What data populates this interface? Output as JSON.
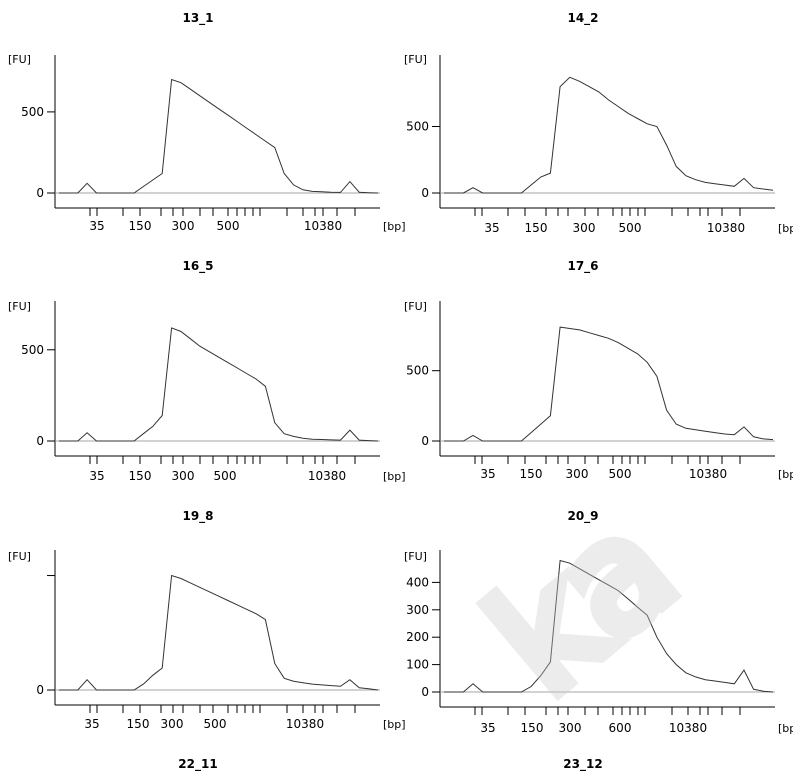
{
  "chart_data": [
    {
      "type": "line",
      "title": "13_1",
      "ylabel": "[FU]",
      "xlabel": "[bp]",
      "yticks": [
        "500",
        "0"
      ],
      "ytick_values": [
        500,
        0
      ],
      "ylim": [
        -80,
        820
      ],
      "xticks": [
        "35",
        "150",
        "300",
        "500",
        "10380"
      ],
      "series": [
        {
          "values": [
            0,
            0,
            0,
            60,
            0,
            0,
            0,
            0,
            0,
            40,
            80,
            120,
            700,
            680,
            640,
            600,
            560,
            520,
            480,
            440,
            400,
            360,
            320,
            280,
            120,
            50,
            20,
            10,
            8,
            5,
            4,
            70,
            5,
            2,
            0
          ]
        }
      ]
    },
    {
      "type": "line",
      "title": "14_2",
      "ylabel": "[FU]",
      "xlabel": "[bp]",
      "yticks": [
        "500",
        "0"
      ],
      "ytick_values": [
        500,
        0
      ],
      "ylim": [
        -80,
        1000
      ],
      "xticks": [
        "35",
        "150",
        "300",
        "500",
        "10380"
      ],
      "series": [
        {
          "values": [
            0,
            0,
            0,
            40,
            0,
            0,
            0,
            0,
            0,
            60,
            120,
            150,
            800,
            870,
            840,
            800,
            760,
            700,
            650,
            600,
            560,
            520,
            500,
            360,
            200,
            130,
            100,
            80,
            70,
            60,
            50,
            110,
            40,
            30,
            20
          ]
        }
      ]
    },
    {
      "type": "line",
      "title": "16_5",
      "ylabel": "[FU]",
      "xlabel": "[bp]",
      "yticks": [
        "500",
        "0"
      ],
      "ytick_values": [
        500,
        0
      ],
      "ylim": [
        -80,
        740
      ],
      "xticks": [
        "35",
        "150",
        "300",
        "500",
        "10380"
      ],
      "series": [
        {
          "values": [
            0,
            0,
            0,
            45,
            0,
            0,
            0,
            0,
            0,
            40,
            80,
            140,
            620,
            600,
            560,
            520,
            490,
            460,
            430,
            400,
            370,
            340,
            300,
            100,
            40,
            25,
            15,
            10,
            8,
            6,
            5,
            60,
            5,
            2,
            0
          ]
        }
      ]
    },
    {
      "type": "line",
      "title": "17_6",
      "ylabel": "[FU]",
      "xlabel": "[bp]",
      "yticks": [
        "500",
        "0"
      ],
      "ytick_values": [
        500,
        0
      ],
      "ylim": [
        -60,
        960
      ],
      "xticks": [
        "35",
        "150",
        "300",
        "500",
        "10380"
      ],
      "series": [
        {
          "values": [
            0,
            0,
            0,
            40,
            0,
            0,
            0,
            0,
            0,
            60,
            120,
            180,
            810,
            800,
            790,
            770,
            750,
            730,
            700,
            660,
            620,
            560,
            460,
            220,
            120,
            90,
            80,
            70,
            60,
            50,
            45,
            100,
            30,
            15,
            10
          ]
        }
      ]
    },
    {
      "type": "line",
      "title": "19_8",
      "ylabel": "[FU]",
      "xlabel": "[bp]",
      "yticks": [
        "",
        "0"
      ],
      "ytick_values": [
        780,
        0
      ],
      "ylim": [
        -80,
        920
      ],
      "xticks": [
        "35",
        "150",
        "300",
        "500",
        "10380"
      ],
      "series": [
        {
          "values": [
            0,
            0,
            0,
            70,
            0,
            0,
            0,
            0,
            0,
            40,
            100,
            150,
            780,
            760,
            730,
            700,
            670,
            640,
            610,
            580,
            550,
            520,
            480,
            180,
            80,
            60,
            50,
            40,
            35,
            30,
            25,
            70,
            15,
            8,
            0
          ]
        }
      ]
    },
    {
      "type": "line",
      "title": "20_9",
      "ylabel": "[FU]",
      "xlabel": "[bp]",
      "yticks": [
        "400",
        "300",
        "200",
        "100",
        "0"
      ],
      "ytick_values": [
        400,
        300,
        200,
        100,
        0
      ],
      "ylim": [
        -25,
        500
      ],
      "xticks": [
        "35",
        "150",
        "300",
        "600",
        "10380"
      ],
      "series": [
        {
          "values": [
            0,
            0,
            0,
            30,
            0,
            0,
            0,
            0,
            0,
            20,
            60,
            110,
            480,
            470,
            450,
            430,
            410,
            390,
            370,
            340,
            310,
            280,
            200,
            140,
            100,
            70,
            55,
            45,
            40,
            35,
            30,
            80,
            10,
            3,
            0
          ]
        }
      ]
    },
    {
      "type": "line",
      "title": "22_11"
    },
    {
      "type": "line",
      "title": "23_12"
    }
  ],
  "watermark": "ka"
}
